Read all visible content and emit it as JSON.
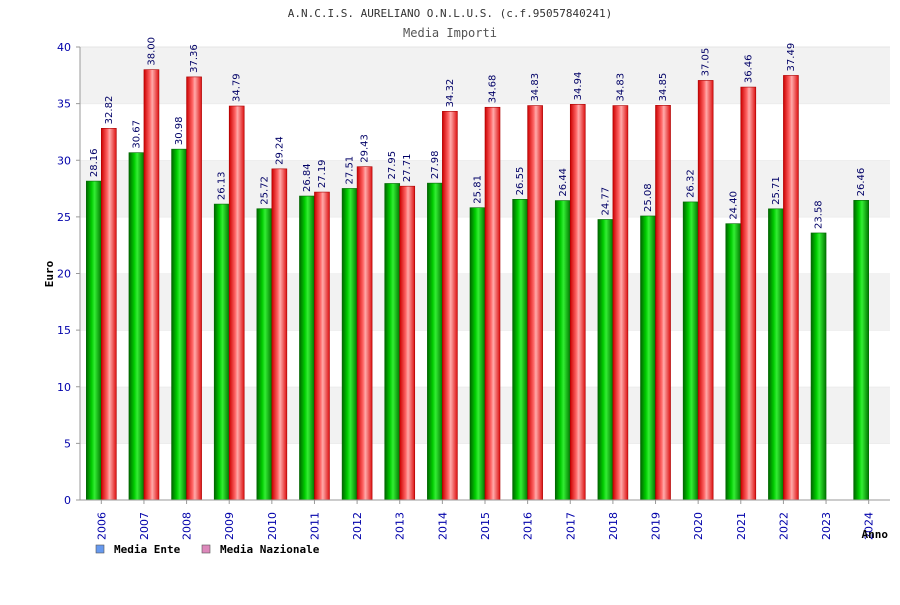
{
  "chart_data": {
    "type": "bar",
    "title": "A.N.C.I.S. AURELIANO O.N.L.U.S. (c.f.95057840241)",
    "subtitle": "Media Importi",
    "xlabel": "Anno",
    "ylabel": "Euro",
    "ylim": [
      0,
      40
    ],
    "yticks": [
      "0",
      "5",
      "10",
      "15",
      "20",
      "25",
      "30",
      "35",
      "40"
    ],
    "grid": true,
    "legend_position": "bottom-left",
    "categories": [
      "2006",
      "2007",
      "2008",
      "2009",
      "2010",
      "2011",
      "2012",
      "2013",
      "2014",
      "2015",
      "2016",
      "2017",
      "2018",
      "2019",
      "2020",
      "2021",
      "2022",
      "2023",
      "2024"
    ],
    "series": [
      {
        "name": "Media Ente",
        "color": "#00aa00",
        "legend_color": "#6699ee",
        "values": [
          28.16,
          30.67,
          30.98,
          26.13,
          25.72,
          26.84,
          27.51,
          27.95,
          27.98,
          25.81,
          26.55,
          26.44,
          24.77,
          25.08,
          26.32,
          24.4,
          25.71,
          23.58,
          26.46
        ],
        "labels": [
          "28.16",
          "30.67",
          "30.98",
          "26.13",
          "25.72",
          "26.84",
          "27.51",
          "27.95",
          "27.98",
          "25.81",
          "26.55",
          "26.44",
          "24.77",
          "25.08",
          "26.32",
          "24.40",
          "25.71",
          "23.58",
          "26.46"
        ]
      },
      {
        "name": "Media Nazionale",
        "color": "#ee2222",
        "legend_color": "#dd88bb",
        "values": [
          32.82,
          38.0,
          37.36,
          34.79,
          29.24,
          27.19,
          29.43,
          27.71,
          34.32,
          34.68,
          34.83,
          34.94,
          34.83,
          34.85,
          37.05,
          36.46,
          37.49,
          null,
          null
        ],
        "labels": [
          "32.82",
          "38.00",
          "37.36",
          "34.79",
          "29.24",
          "27.19",
          "29.43",
          "27.71",
          "34.32",
          "34.68",
          "34.83",
          "34.94",
          "34.83",
          "34.85",
          "37.05",
          "36.46",
          "37.49",
          null,
          null
        ]
      }
    ]
  }
}
